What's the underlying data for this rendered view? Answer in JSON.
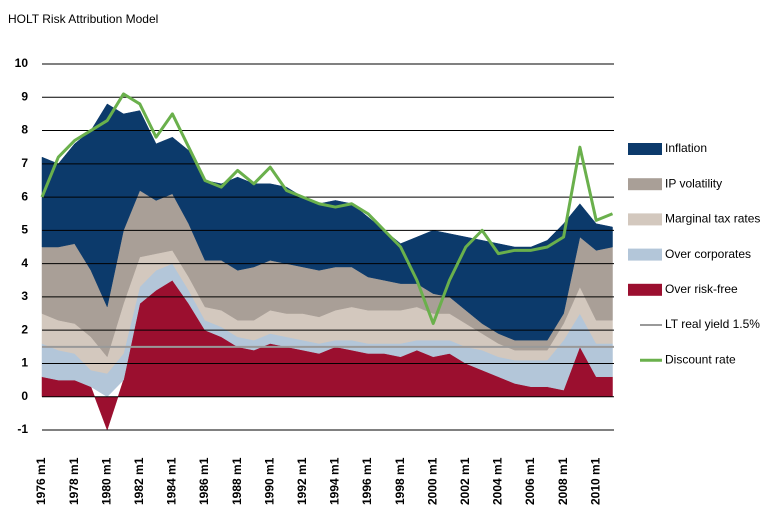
{
  "chart_data": {
    "type": "stacked-area",
    "title": "HOLT Risk Attribution Model",
    "categories": [
      "1976 m1",
      null,
      "1978 m1",
      null,
      "1980 m1",
      null,
      "1982 m1",
      null,
      "1984 m1",
      null,
      "1986 m1",
      null,
      "1988 m1",
      null,
      "1990 m1",
      null,
      "1992 m1",
      null,
      "1994 m1",
      null,
      "1996 m1",
      null,
      "1998 m1",
      null,
      "2000 m1",
      null,
      "2002 m1",
      null,
      "2004 m1",
      null,
      "2006 m1",
      null,
      "2008 m1",
      null,
      "2010 m1",
      null
    ],
    "ylim": [
      -1,
      10
    ],
    "yticks": [
      -1,
      0,
      1,
      2,
      3,
      4,
      5,
      6,
      7,
      8,
      9,
      10
    ],
    "grid": true,
    "series": [
      {
        "name": "Over risk-free",
        "color": "#9b0f2f",
        "values": [
          0.6,
          0.5,
          0.5,
          0.3,
          -1.0,
          0.5,
          2.8,
          3.2,
          3.5,
          2.8,
          2.0,
          1.8,
          1.5,
          1.4,
          1.6,
          1.5,
          1.4,
          1.3,
          1.5,
          1.4,
          1.3,
          1.3,
          1.2,
          1.4,
          1.2,
          1.3,
          1.0,
          0.8,
          0.6,
          0.4,
          0.3,
          0.3,
          0.2,
          1.5,
          0.6,
          0.6
        ]
      },
      {
        "name": "Over corporates",
        "color": "#b3c6d9",
        "values": [
          1.0,
          0.9,
          0.8,
          0.5,
          0.7,
          0.8,
          0.5,
          0.6,
          0.5,
          0.4,
          0.3,
          0.3,
          0.3,
          0.3,
          0.3,
          0.3,
          0.3,
          0.3,
          0.2,
          0.3,
          0.3,
          0.3,
          0.4,
          0.3,
          0.5,
          0.4,
          0.5,
          0.6,
          0.6,
          0.7,
          0.8,
          0.8,
          1.5,
          1.0,
          1.0,
          1.0
        ]
      },
      {
        "name": "Marginal tax rates",
        "color": "#d3c8be",
        "values": [
          0.9,
          0.9,
          0.9,
          1.0,
          0.5,
          1.5,
          0.9,
          0.5,
          0.4,
          0.4,
          0.4,
          0.5,
          0.5,
          0.6,
          0.7,
          0.7,
          0.8,
          0.8,
          0.9,
          1.0,
          1.0,
          1.0,
          1.0,
          1.0,
          0.8,
          0.8,
          0.7,
          0.5,
          0.4,
          0.3,
          0.3,
          0.3,
          0.5,
          0.8,
          0.7,
          0.7
        ]
      },
      {
        "name": "IP volatility",
        "color": "#a99f97",
        "values": [
          2.0,
          2.2,
          2.4,
          2.0,
          1.5,
          2.2,
          2.0,
          1.6,
          1.7,
          1.6,
          1.4,
          1.5,
          1.5,
          1.6,
          1.5,
          1.5,
          1.4,
          1.4,
          1.3,
          1.2,
          1.0,
          0.9,
          0.8,
          0.7,
          0.6,
          0.5,
          0.4,
          0.3,
          0.3,
          0.3,
          0.3,
          0.3,
          0.3,
          1.5,
          2.1,
          2.2
        ]
      },
      {
        "name": "Inflation",
        "color": "#0c3a6b",
        "values": [
          2.7,
          2.5,
          3.0,
          4.2,
          6.1,
          3.5,
          2.4,
          1.7,
          1.7,
          2.2,
          2.4,
          2.3,
          2.8,
          2.5,
          2.3,
          2.3,
          2.1,
          2.0,
          2.0,
          1.9,
          1.8,
          1.5,
          1.2,
          1.4,
          1.9,
          1.9,
          2.2,
          2.5,
          2.7,
          2.8,
          2.8,
          3.0,
          2.7,
          1.0,
          0.8,
          0.6
        ]
      }
    ],
    "reference_line": {
      "name": "LT real yield 1.5%",
      "color": "#999999",
      "value": 1.5
    },
    "line": {
      "name": "Discount rate",
      "color": "#6ab04c",
      "values": [
        6.0,
        7.2,
        7.7,
        8.0,
        8.3,
        9.1,
        8.8,
        7.8,
        8.5,
        7.5,
        6.5,
        6.3,
        6.8,
        6.4,
        6.9,
        6.2,
        6.0,
        5.8,
        5.7,
        5.8,
        5.5,
        5.0,
        4.5,
        3.5,
        2.2,
        3.5,
        4.5,
        5.0,
        4.3,
        4.4,
        4.4,
        4.5,
        4.8,
        7.5,
        5.3,
        5.5
      ]
    }
  }
}
